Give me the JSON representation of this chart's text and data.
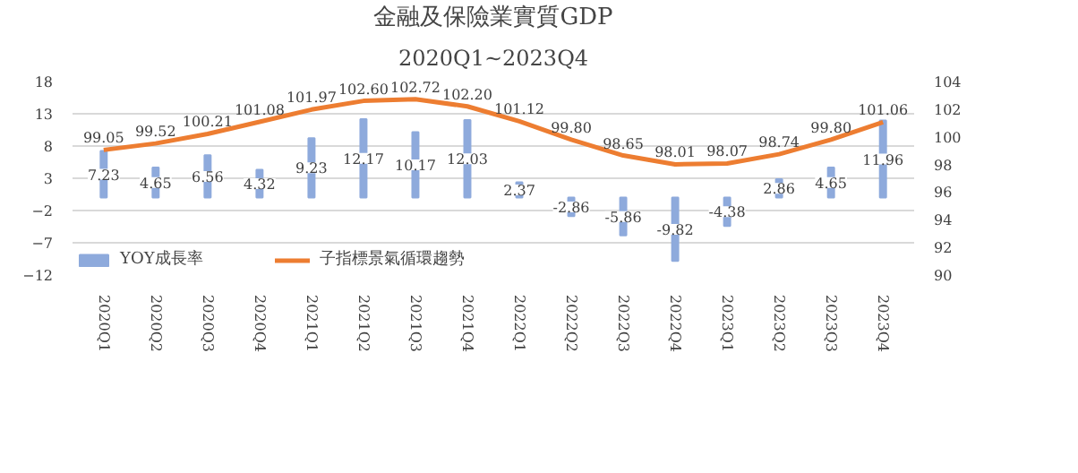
{
  "chart_data": {
    "type": "bar",
    "title": "金融及保險業實質GDP",
    "subtitle": "2020Q1~2023Q4",
    "categories": [
      "2020Q1",
      "2020Q2",
      "2020Q3",
      "2020Q4",
      "2021Q1",
      "2021Q2",
      "2021Q3",
      "2021Q4",
      "2022Q1",
      "2022Q2",
      "2022Q3",
      "2022Q4",
      "2023Q1",
      "2023Q2",
      "2023Q3",
      "2023Q4"
    ],
    "series": [
      {
        "name": "YOY成長率",
        "color": "#8eaadc",
        "values": [
          7.23,
          4.65,
          6.56,
          4.32,
          9.23,
          12.17,
          10.17,
          12.03,
          2.37,
          -2.86,
          -5.86,
          -9.82,
          -4.38,
          2.86,
          4.65,
          11.96
        ]
      },
      {
        "name": "子指標景氣循環趨勢",
        "type": "line",
        "axis": "y2",
        "color": "#ed7d31",
        "values": [
          99.05,
          99.52,
          100.21,
          101.08,
          101.97,
          102.6,
          102.72,
          102.2,
          101.12,
          99.8,
          98.65,
          98.01,
          98.07,
          98.74,
          99.8,
          101.06
        ],
        "value_labels": [
          "99.05",
          "99.52",
          "100.21",
          "101.08",
          "101.97",
          "102.60",
          "102.72",
          "102.20",
          "101.12",
          "99.80",
          "98.65",
          "98.01",
          "98.07",
          "98.74",
          "99.80",
          "101.06"
        ]
      }
    ],
    "ylim": [
      -12,
      18
    ],
    "yticks": [
      -12,
      -7,
      -2,
      3,
      8,
      13,
      18
    ],
    "y2lim": [
      90,
      104
    ],
    "y2ticks": [
      90,
      92,
      94,
      96,
      98,
      100,
      102,
      104
    ],
    "data_labels": true,
    "grid": "y",
    "legend": "bottom left",
    "marker": "none",
    "line_style": "solid"
  }
}
